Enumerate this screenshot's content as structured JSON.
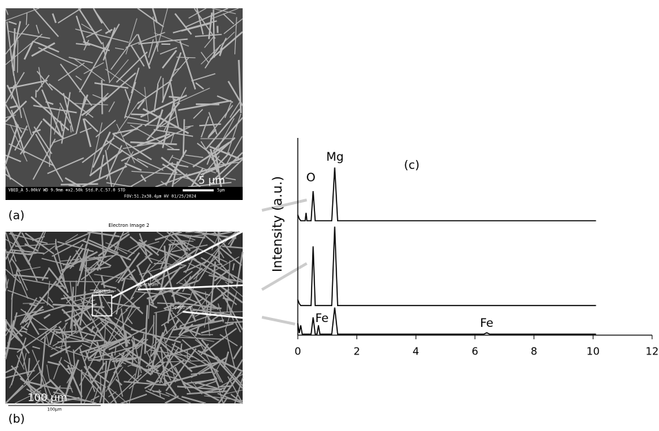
{
  "panels": {
    "a": {
      "label": "(a)",
      "overlay_scale": "5 μm",
      "info_left": "VBED_A  5.00kV  WD 9.9mm  ⊕x2.50k  Std.P.C.57.0  STD",
      "info_scale": "5μm",
      "info_fov": "FOV:51.2x38.4μm    HV    01/25/2024"
    },
    "b": {
      "label": "(b)",
      "title": "Electron Image 2",
      "spectrum_labels": [
        "Spectrum",
        "Spectrum",
        "Spectrum"
      ],
      "overlay_scale": "100 μm",
      "scale_bar": "100µm"
    }
  },
  "chart_data": {
    "type": "line",
    "label": "(c)",
    "ylabel": "Intensity (a.u.)",
    "annotations": [
      "O",
      "Mg",
      "Fe",
      "Fe"
    ],
    "x": [
      0,
      0.05,
      0.1,
      0.15,
      0.25,
      0.28,
      0.31,
      0.45,
      0.52,
      0.59,
      0.65,
      0.7,
      0.75,
      1.15,
      1.25,
      1.35,
      1.5,
      6.3,
      6.4,
      6.5,
      10.1
    ],
    "series": [
      {
        "color": "#000000",
        "values": [
          61,
          59,
          58,
          58,
          58,
          62,
          58,
          58,
          73,
          58,
          58,
          58,
          58,
          58,
          85,
          58,
          58,
          58,
          58,
          58,
          58
        ]
      },
      {
        "color": "#000000",
        "values": [
          18,
          16,
          15,
          15,
          15,
          15,
          15,
          15,
          45,
          15,
          15,
          15,
          15,
          15,
          55,
          15,
          15,
          15,
          15,
          15,
          15
        ]
      },
      {
        "color": "#000000",
        "values": [
          6,
          1,
          5,
          0.5,
          0.5,
          0.5,
          0.5,
          0.5,
          9,
          0.5,
          0.5,
          5,
          0.5,
          0.5,
          14,
          0.5,
          0.5,
          0.5,
          1.2,
          0.5,
          0.5
        ]
      }
    ],
    "xlim": [
      0,
      12
    ],
    "xticks": [
      0,
      2,
      4,
      6,
      8,
      10,
      12
    ],
    "ylim": [
      0,
      100
    ],
    "grid": false
  }
}
